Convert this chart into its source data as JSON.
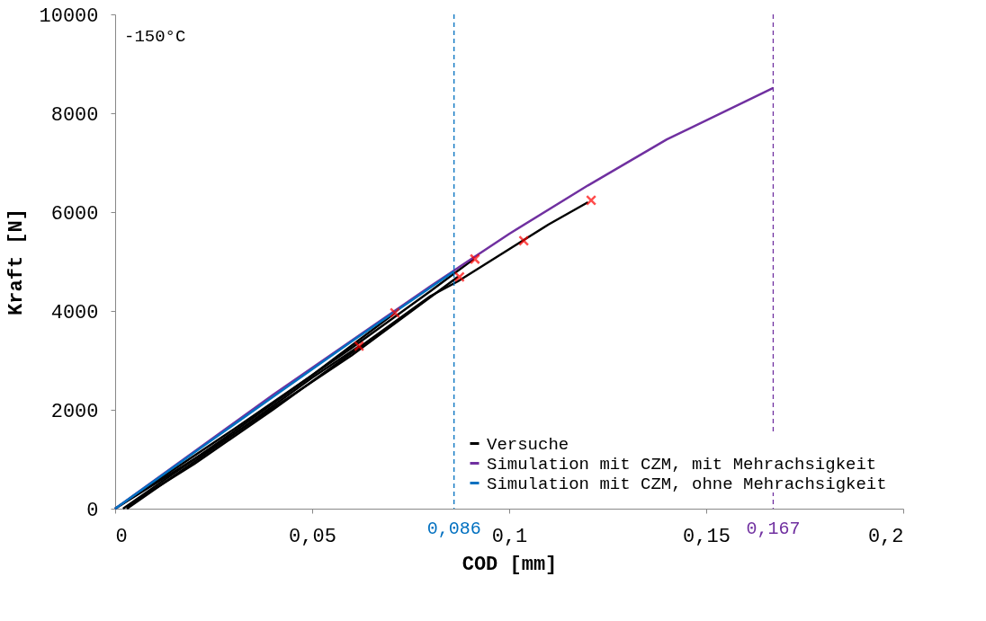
{
  "chart_data": {
    "type": "line",
    "xlabel": "COD [mm]",
    "ylabel": "Kraft [N]",
    "xlim": [
      0,
      0.2
    ],
    "ylim": [
      0,
      10000
    ],
    "xticks": [
      0,
      {
        "value": 0.05,
        "label": "0,05"
      },
      {
        "value": 0.1,
        "label": "0,1"
      },
      {
        "value": 0.15,
        "label": "0,15"
      },
      {
        "value": 0.2,
        "label": "0,2"
      }
    ],
    "yticks": [
      0,
      2000,
      4000,
      6000,
      8000,
      10000
    ],
    "grid": false,
    "legend": "bottom right",
    "line_style": "solid",
    "annotations": [
      "-150°C"
    ],
    "ref_lines": [
      {
        "axis": "x",
        "value": 0.086,
        "label": "0,086",
        "color": "#0070c0",
        "line_style": "dashed"
      },
      {
        "axis": "x",
        "value": 0.167,
        "label": "0,167",
        "color": "#7030a0",
        "line_style": "dashed"
      }
    ],
    "series": [
      {
        "name": "Versuche",
        "color": "#000000",
        "x": [
          0.003,
          0.004,
          0.02,
          0.04,
          0.06,
          0.08,
          0.087,
          0.1,
          0.104,
          0.11,
          0.12
        ],
        "values": [
          0,
          100,
          900,
          2000,
          3150,
          4300,
          4600,
          5250,
          5450,
          5750,
          6200
        ]
      },
      {
        "color": "#000000",
        "x": [
          0.003,
          0.03,
          0.05,
          0.062
        ],
        "values": [
          0,
          1500,
          2650,
          3290
        ]
      },
      {
        "color": "#000000",
        "x": [
          0.002,
          0.03,
          0.05,
          0.071
        ],
        "values": [
          0,
          1550,
          2700,
          3960
        ]
      },
      {
        "color": "#000000",
        "x": [
          0,
          0.03,
          0.06,
          0.087
        ],
        "values": [
          0,
          1500,
          3100,
          4690
        ]
      },
      {
        "color": "#000000",
        "x": [
          0,
          0.03,
          0.06,
          0.08,
          0.091
        ],
        "values": [
          0,
          1600,
          3250,
          4400,
          5050
        ]
      },
      {
        "name": "Simulation mit CZM, mit Mehrachsigkeit",
        "color": "#7030a0",
        "x": [
          0,
          0.02,
          0.04,
          0.06,
          0.08,
          0.1,
          0.12,
          0.14,
          0.167
        ],
        "values": [
          0,
          1150,
          2300,
          3400,
          4500,
          5560,
          6540,
          7470,
          8510
        ]
      },
      {
        "name": "Simulation mit CZM, ohne Mehrachsigkeit",
        "color": "#0070c0",
        "x": [
          0,
          0.02,
          0.04,
          0.06,
          0.086
        ],
        "values": [
          0,
          1130,
          2260,
          3380,
          4800
        ]
      },
      {
        "type": "scatter",
        "marker": "cross",
        "color": "#ff0000",
        "x": [
          0.0619,
          0.071,
          0.0874,
          0.0913,
          0.1037,
          0.1208
        ],
        "values": [
          3290,
          3960,
          4690,
          5050,
          5420,
          6240
        ]
      }
    ]
  }
}
